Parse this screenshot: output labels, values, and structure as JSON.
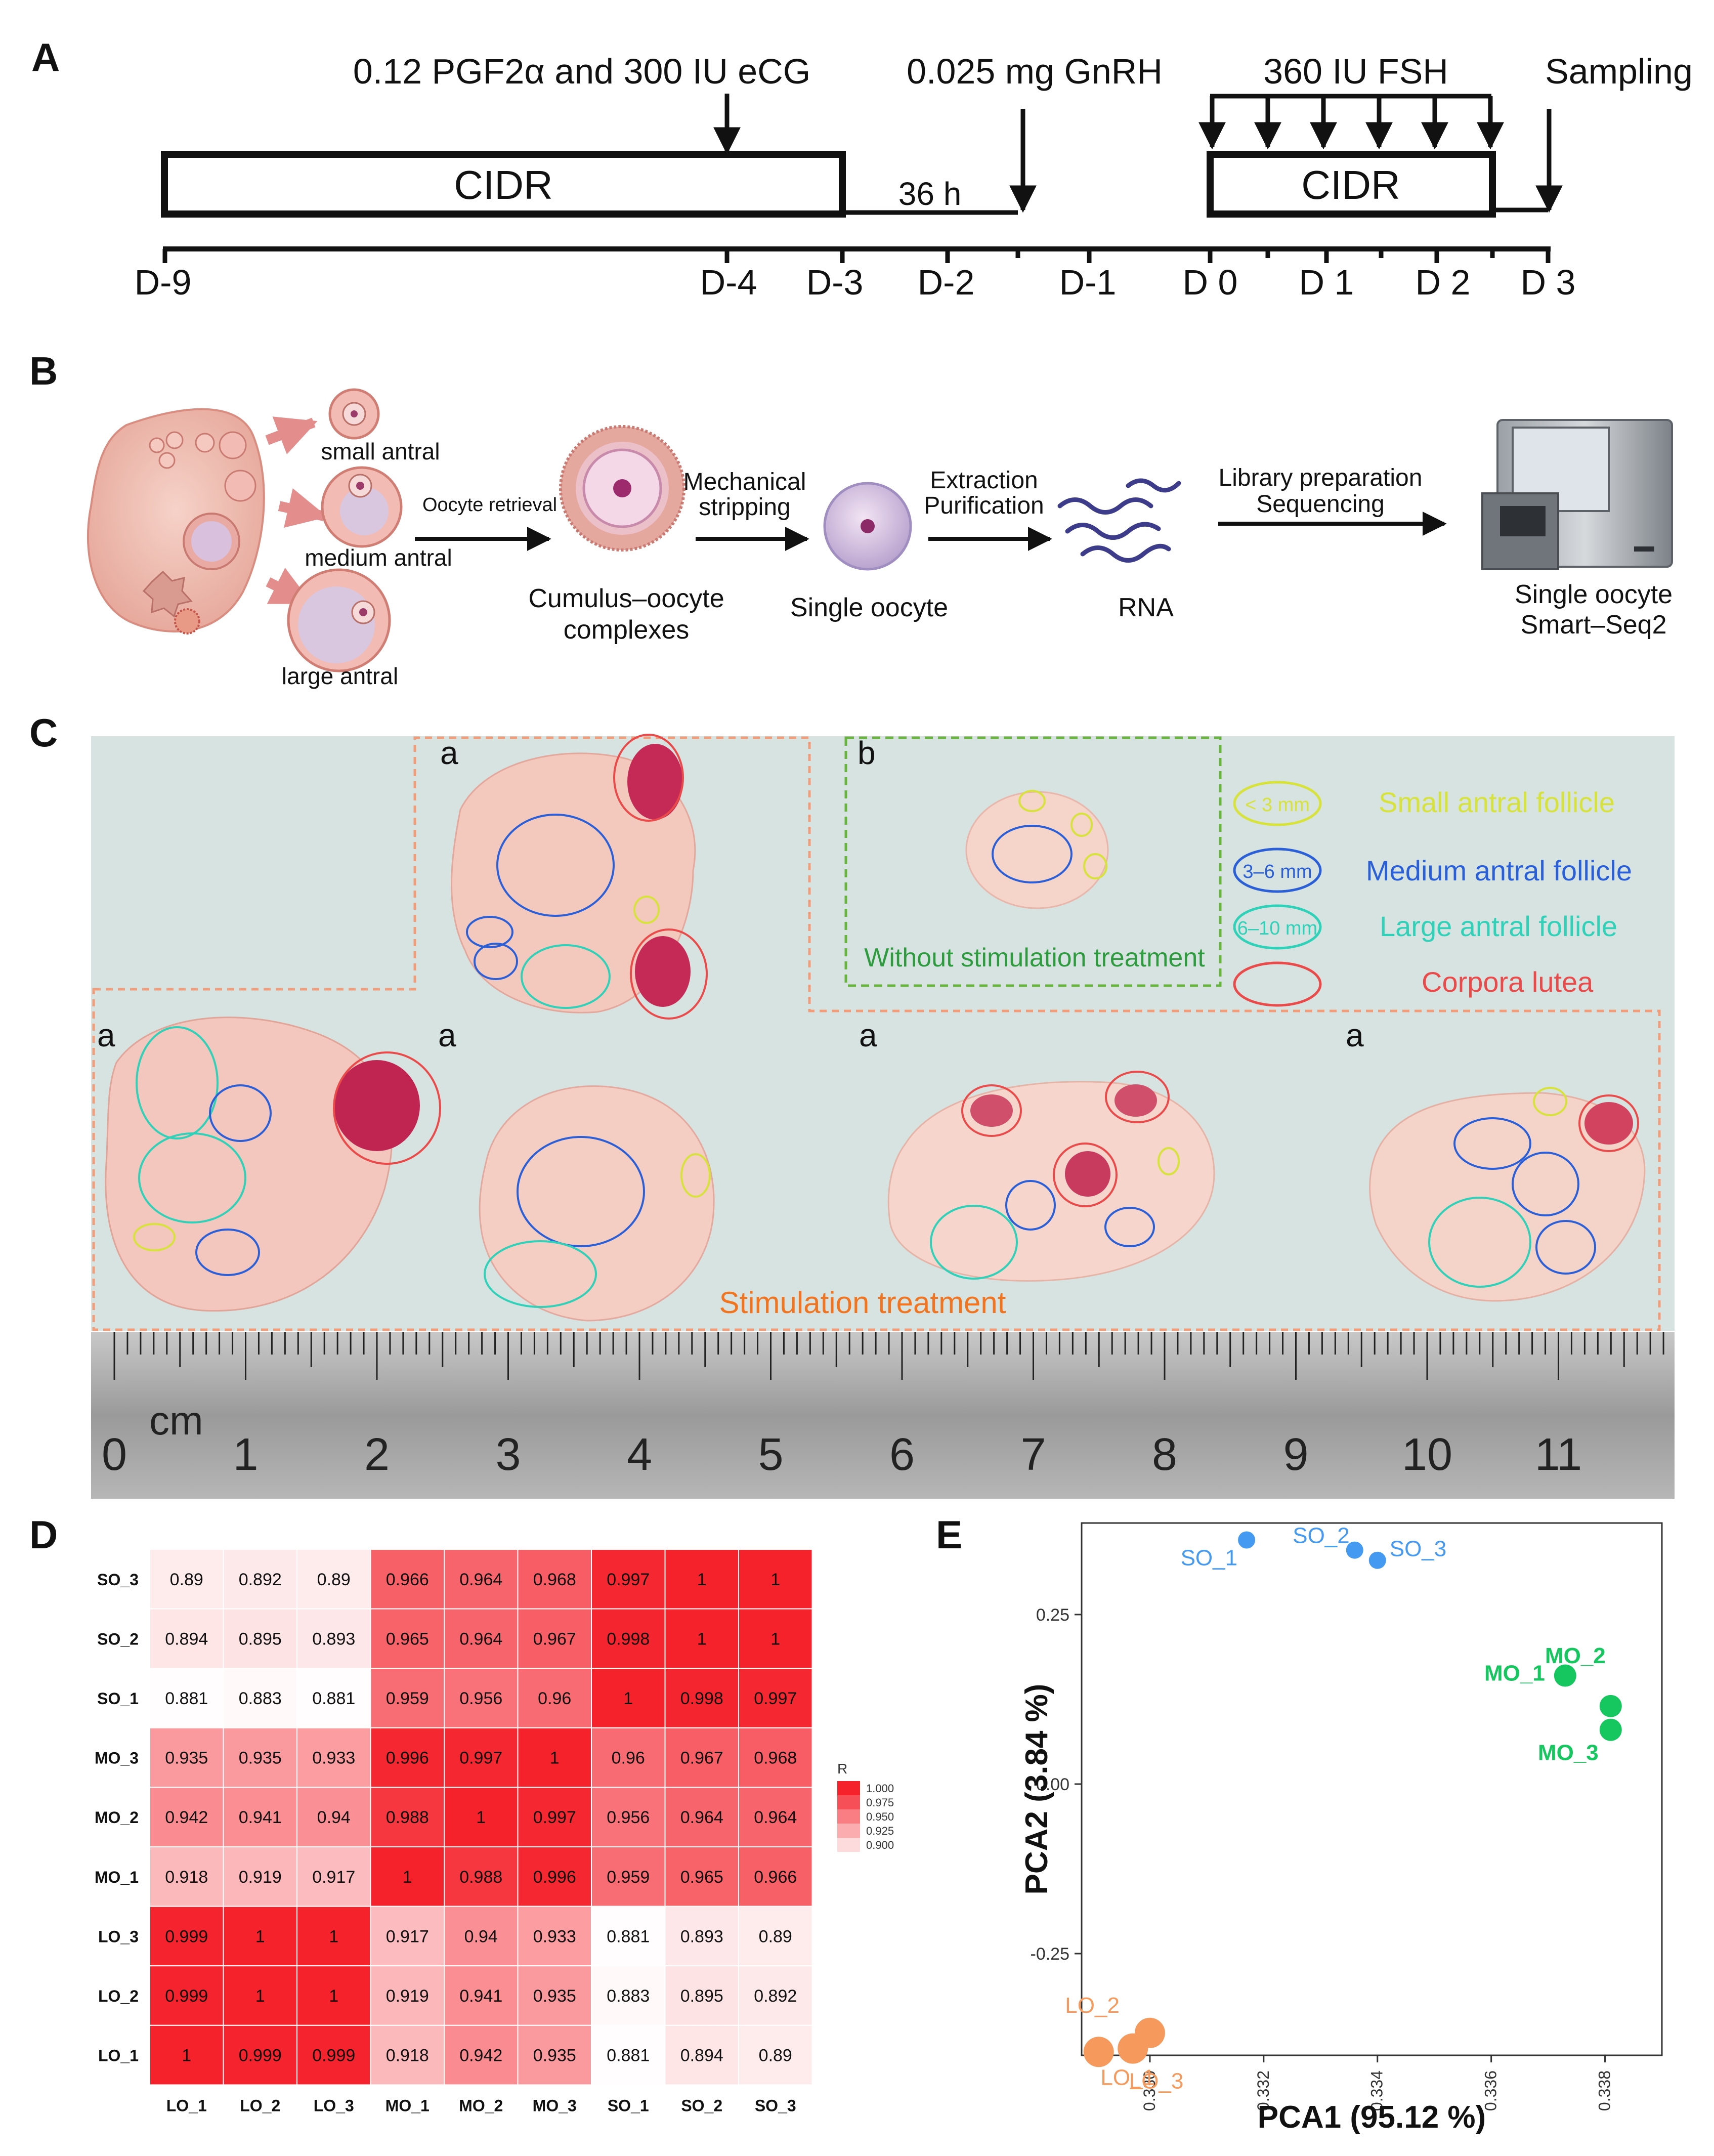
{
  "panels": {
    "a": {
      "letter": "A",
      "doses": {
        "pgf": "0.12 PGF2α and 300 IU eCG",
        "gnrh": "0.025 mg GnRH",
        "fsh": "360 IU FSH",
        "sampling": "Sampling"
      },
      "cidr_label": "CIDR",
      "interval": "36 h",
      "days": [
        "D-9",
        "D-4",
        "D-3",
        "D-2",
        "D-1",
        "D 0",
        "D 1",
        "D 2",
        "D 3"
      ]
    },
    "b": {
      "letter": "B",
      "follicles": [
        "small antral",
        "medium antral",
        "large antral"
      ],
      "steps": {
        "retrieval": "Oocyte retrieval",
        "stripping": [
          "Mechanical",
          "stripping"
        ],
        "extraction": [
          "Extraction",
          "Purification"
        ],
        "library": [
          "Library preparation",
          "Sequencing"
        ]
      },
      "labels": {
        "coc": [
          "Cumulus–oocyte",
          "complexes"
        ],
        "oocyte": "Single oocyte",
        "rna": "RNA",
        "seq": [
          "Single oocyte",
          "Smart–Seq2"
        ]
      }
    },
    "c": {
      "letter": "C",
      "group_tags": [
        "a",
        "b",
        "a",
        "a",
        "a",
        "a"
      ],
      "without_label": "Without stimulation treatment",
      "stim_label": "Stimulation treatment",
      "legend": [
        {
          "size": "< 3 mm",
          "label": "Small antral follicle",
          "color": "#d7e23a"
        },
        {
          "size": "3–6 mm",
          "label": "Medium antral follicle",
          "color": "#2a5fd8"
        },
        {
          "size": "6–10 mm",
          "label": "Large antral follicle",
          "color": "#2fd1b8"
        },
        {
          "size": "",
          "label": "Corpora lutea",
          "color": "#ea4a4a"
        }
      ],
      "ruler_unit": "cm",
      "ruler_numbers": [
        "0",
        "1",
        "2",
        "3",
        "4",
        "5",
        "6",
        "7",
        "8",
        "9",
        "10",
        "11"
      ]
    },
    "d": {
      "letter": "D",
      "legend_title": "R",
      "legend_ticks": [
        "0.900",
        "0.925",
        "0.950",
        "0.975",
        "1.000"
      ]
    },
    "e": {
      "letter": "E"
    }
  },
  "chart_data": [
    {
      "type": "heatmap",
      "panel": "D",
      "x_labels": [
        "LO_1",
        "LO_2",
        "LO_3",
        "MO_1",
        "MO_2",
        "MO_3",
        "SO_1",
        "SO_2",
        "SO_3"
      ],
      "y_labels": [
        "SO_3",
        "SO_2",
        "SO_1",
        "MO_3",
        "MO_2",
        "MO_1",
        "LO_3",
        "LO_2",
        "LO_1"
      ],
      "matrix": [
        [
          "0.89",
          "0.892",
          "0.89",
          "0.966",
          "0.964",
          "0.968",
          "0.997",
          "1",
          "1"
        ],
        [
          "0.894",
          "0.895",
          "0.893",
          "0.965",
          "0.964",
          "0.967",
          "0.998",
          "1",
          "1"
        ],
        [
          "0.881",
          "0.883",
          "0.881",
          "0.959",
          "0.956",
          "0.96",
          "1",
          "0.998",
          "0.997"
        ],
        [
          "0.935",
          "0.935",
          "0.933",
          "0.996",
          "0.997",
          "1",
          "0.96",
          "0.967",
          "0.968"
        ],
        [
          "0.942",
          "0.941",
          "0.94",
          "0.988",
          "1",
          "0.997",
          "0.956",
          "0.964",
          "0.964"
        ],
        [
          "0.918",
          "0.919",
          "0.917",
          "1",
          "0.988",
          "0.996",
          "0.959",
          "0.965",
          "0.966"
        ],
        [
          "0.999",
          "1",
          "1",
          "0.917",
          "0.94",
          "0.933",
          "0.881",
          "0.893",
          "0.89"
        ],
        [
          "0.999",
          "1",
          "1",
          "0.919",
          "0.941",
          "0.935",
          "0.883",
          "0.895",
          "0.892"
        ],
        [
          "1",
          "0.999",
          "0.999",
          "0.918",
          "0.942",
          "0.935",
          "0.881",
          "0.894",
          "0.89"
        ]
      ],
      "color_range": [
        0.88,
        1.0
      ],
      "colors": {
        "low": "#ffffff",
        "high": "#f5212b"
      }
    },
    {
      "type": "scatter",
      "panel": "E",
      "xlabel": "PCA1 (95.12 %)",
      "ylabel": "PCA2 (3.84 %)",
      "xlim": [
        0.3288,
        0.339
      ],
      "ylim": [
        -0.4,
        0.385
      ],
      "x_ticks": [
        "0.330",
        "0.332",
        "0.334",
        "0.336",
        "0.338"
      ],
      "y_ticks": [
        "-0.25",
        "0.00",
        "0.25"
      ],
      "series": [
        {
          "color": "#4499f0",
          "points": [
            {
              "label": "SO_1",
              "x": 0.3317,
              "y": 0.36
            },
            {
              "label": "SO_2",
              "x": 0.3336,
              "y": 0.345
            },
            {
              "label": "SO_3",
              "x": 0.334,
              "y": 0.33
            }
          ]
        },
        {
          "color": "#16c75f",
          "points": [
            {
              "label": "MO_1",
              "x": 0.3373,
              "y": 0.16
            },
            {
              "label": "MO_2",
              "x": 0.3381,
              "y": 0.115
            },
            {
              "label": "MO_3",
              "x": 0.3381,
              "y": 0.08
            }
          ]
        },
        {
          "color": "#f59a5c",
          "points": [
            {
              "label": "LO_2",
              "x": 0.33,
              "y": -0.367
            },
            {
              "label": "LO_1",
              "x": 0.3297,
              "y": -0.39
            },
            {
              "label": "LO_3",
              "x": 0.3291,
              "y": -0.395
            }
          ]
        }
      ]
    }
  ]
}
